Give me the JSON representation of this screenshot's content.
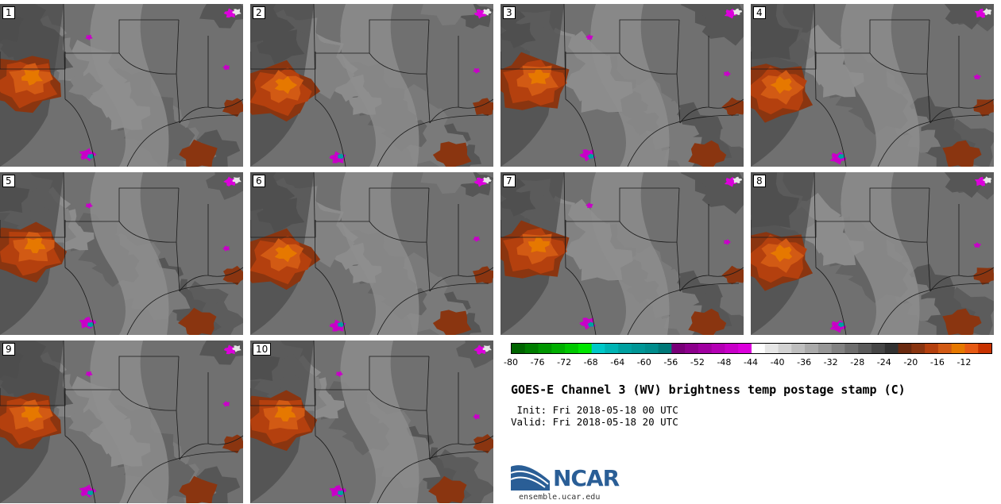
{
  "panels": [
    {
      "label": "1",
      "variant": 0
    },
    {
      "label": "2",
      "variant": 1
    },
    {
      "label": "3",
      "variant": 2
    },
    {
      "label": "4",
      "variant": 3
    },
    {
      "label": "5",
      "variant": 4
    },
    {
      "label": "6",
      "variant": 1
    },
    {
      "label": "7",
      "variant": 2
    },
    {
      "label": "8",
      "variant": 3
    },
    {
      "label": "9",
      "variant": 0
    },
    {
      "label": "10",
      "variant": 4
    }
  ],
  "colorbar": {
    "colors": [
      "#006400",
      "#007d00",
      "#009600",
      "#00af00",
      "#00c800",
      "#00e600",
      "#00c8c8",
      "#00b4b4",
      "#00a0a0",
      "#009696",
      "#008c8c",
      "#007878",
      "#780078",
      "#8c008c",
      "#a000a0",
      "#b400b4",
      "#c800c8",
      "#dc00dc",
      "#ffffff",
      "#e6e6e6",
      "#d2d2d2",
      "#bebebe",
      "#aaaaaa",
      "#969696",
      "#828282",
      "#6e6e6e",
      "#5a5a5a",
      "#464646",
      "#323232",
      "#6a2a10",
      "#8a3510",
      "#b4400e",
      "#d25a14",
      "#e67800",
      "#e65a14",
      "#c83200"
    ],
    "ticks": [
      "-80",
      "-76",
      "-72",
      "-68",
      "-64",
      "-60",
      "-56",
      "-52",
      "-48",
      "-44",
      "-40",
      "-36",
      "-32",
      "-28",
      "-24",
      "-20",
      "-16",
      "-12"
    ]
  },
  "info": {
    "title": "GOES-E Channel 3 (WV) brightness temp postage stamp (C)",
    "init": " Init: Fri 2018-05-18 00 UTC",
    "valid": "Valid: Fri 2018-05-18 20 UTC"
  },
  "logo": {
    "name": "NCAR",
    "site": "ensemble.ucar.edu"
  }
}
